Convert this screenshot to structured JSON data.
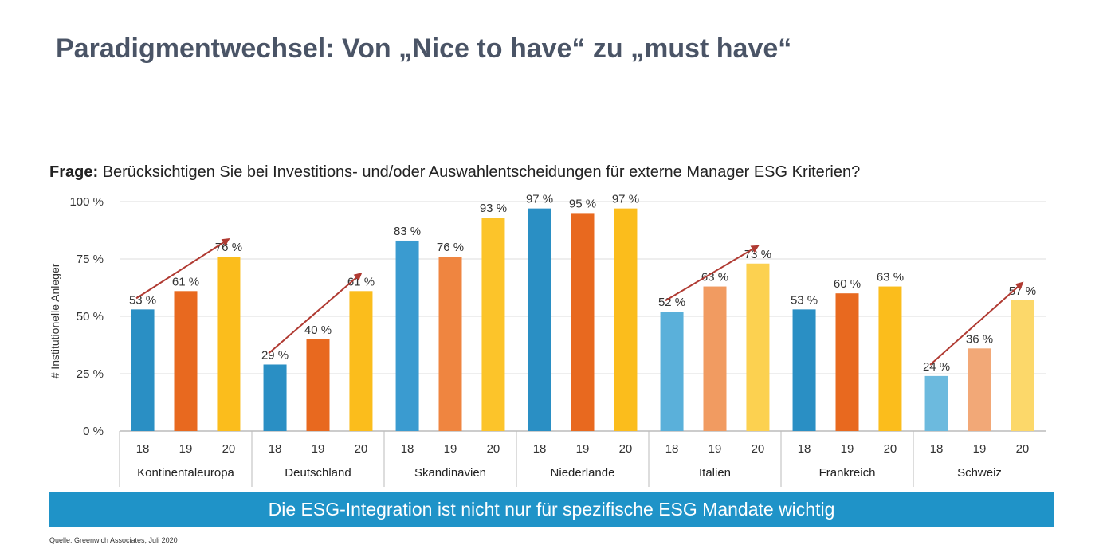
{
  "title": "Paradigmentwechsel: Von „Nice to have“ zu „must have“",
  "question": {
    "prefix": "Frage:",
    "text": "Berücksichtigen Sie bei Investitions- und/oder Auswahlentscheidungen für externe Manager ESG Kriterien?"
  },
  "banner": "Die ESG-Integration ist nicht nur für spezifische ESG Mandate wichtig",
  "source": "Quelle: Greenwich Associates, Juli 2020",
  "colors": {
    "accent_blue": "#1f93c8",
    "arrow": "#b03a32",
    "grid": "#dddddd"
  },
  "chart_data": {
    "type": "bar",
    "ylabel": "# Institutionelle Anleger",
    "ylim": [
      0,
      100
    ],
    "yticks": [
      "0 %",
      "25 %",
      "50 %",
      "75 %",
      "100 %"
    ],
    "ytick_values": [
      0,
      25,
      50,
      75,
      100
    ],
    "year_labels": [
      "18",
      "19",
      "20"
    ],
    "groups": [
      {
        "name": "Kontinentaleuropa",
        "values": [
          53,
          61,
          76
        ],
        "labels": [
          "53 %",
          "61 %",
          "76 %"
        ],
        "colors": [
          "#2a8fc4",
          "#e8691f",
          "#fbbd1c"
        ],
        "trend_arrow": true
      },
      {
        "name": "Deutschland",
        "values": [
          29,
          40,
          61
        ],
        "labels": [
          "29 %",
          "40 %",
          "61 %"
        ],
        "colors": [
          "#2a8fc4",
          "#e8691f",
          "#fbbd1c"
        ],
        "trend_arrow": true
      },
      {
        "name": "Skandinavien",
        "values": [
          83,
          76,
          93
        ],
        "labels": [
          "83 %",
          "76 %",
          "93 %"
        ],
        "colors": [
          "#3a9bd0",
          "#ef8540",
          "#fcc42a"
        ],
        "trend_arrow": false
      },
      {
        "name": "Niederlande",
        "values": [
          97,
          95,
          97
        ],
        "labels": [
          "97 %",
          "95 %",
          "97 %"
        ],
        "colors": [
          "#2a8fc4",
          "#e8691f",
          "#fbbd1c"
        ],
        "trend_arrow": false
      },
      {
        "name": "Italien",
        "values": [
          52,
          63,
          73
        ],
        "labels": [
          "52 %",
          "63 %",
          "73 %"
        ],
        "colors": [
          "#5ab0da",
          "#f19b61",
          "#fcd150"
        ],
        "trend_arrow": true
      },
      {
        "name": "Frankreich",
        "values": [
          53,
          60,
          63
        ],
        "labels": [
          "53 %",
          "60 %",
          "63 %"
        ],
        "colors": [
          "#2a8fc4",
          "#e8691f",
          "#fbbd1c"
        ],
        "trend_arrow": false
      },
      {
        "name": "Schweiz",
        "values": [
          24,
          36,
          57
        ],
        "labels": [
          "24 %",
          "36 %",
          "57 %"
        ],
        "colors": [
          "#6cbade",
          "#f2a877",
          "#fcd86a"
        ],
        "trend_arrow": true
      }
    ]
  }
}
